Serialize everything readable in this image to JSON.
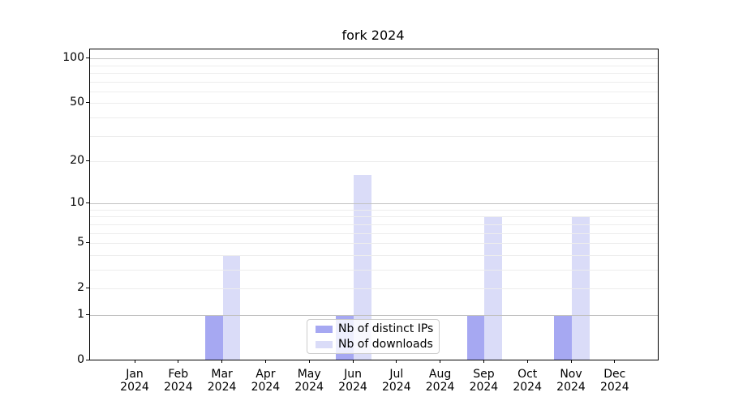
{
  "chart_data": {
    "type": "bar",
    "title": "fork 2024",
    "categories": [
      "Jan",
      "Feb",
      "Mar",
      "Apr",
      "May",
      "Jun",
      "Jul",
      "Aug",
      "Sep",
      "Oct",
      "Nov",
      "Dec"
    ],
    "category_year": "2024",
    "series": [
      {
        "name": "Nb of distinct IPs",
        "color": "#a6a8f2",
        "values": [
          0,
          0,
          1,
          0,
          0,
          1,
          0,
          0,
          1,
          0,
          1,
          0
        ]
      },
      {
        "name": "Nb of downloads",
        "color": "#dadcf8",
        "values": [
          0,
          0,
          4,
          0,
          0,
          16,
          0,
          0,
          8,
          0,
          8,
          0
        ]
      }
    ],
    "yscale": "log1p",
    "ylim": [
      0,
      116
    ],
    "y_tick_labels": [
      "0",
      "1",
      "2",
      "5",
      "10",
      "20",
      "50",
      "100"
    ],
    "y_tick_values": [
      0,
      1,
      2,
      5,
      10,
      20,
      50,
      100
    ],
    "y_major_gridlines": [
      1,
      10,
      100
    ],
    "y_minor_gridlines": [
      2,
      3,
      4,
      5,
      6,
      7,
      8,
      9,
      20,
      30,
      40,
      50,
      60,
      70,
      80,
      90
    ],
    "grid": true,
    "legend_position": "lower center",
    "colors": {
      "major_grid": "#c2c2c2",
      "minor_grid": "#ededed",
      "spine": "#000000",
      "background": "#ffffff"
    }
  }
}
